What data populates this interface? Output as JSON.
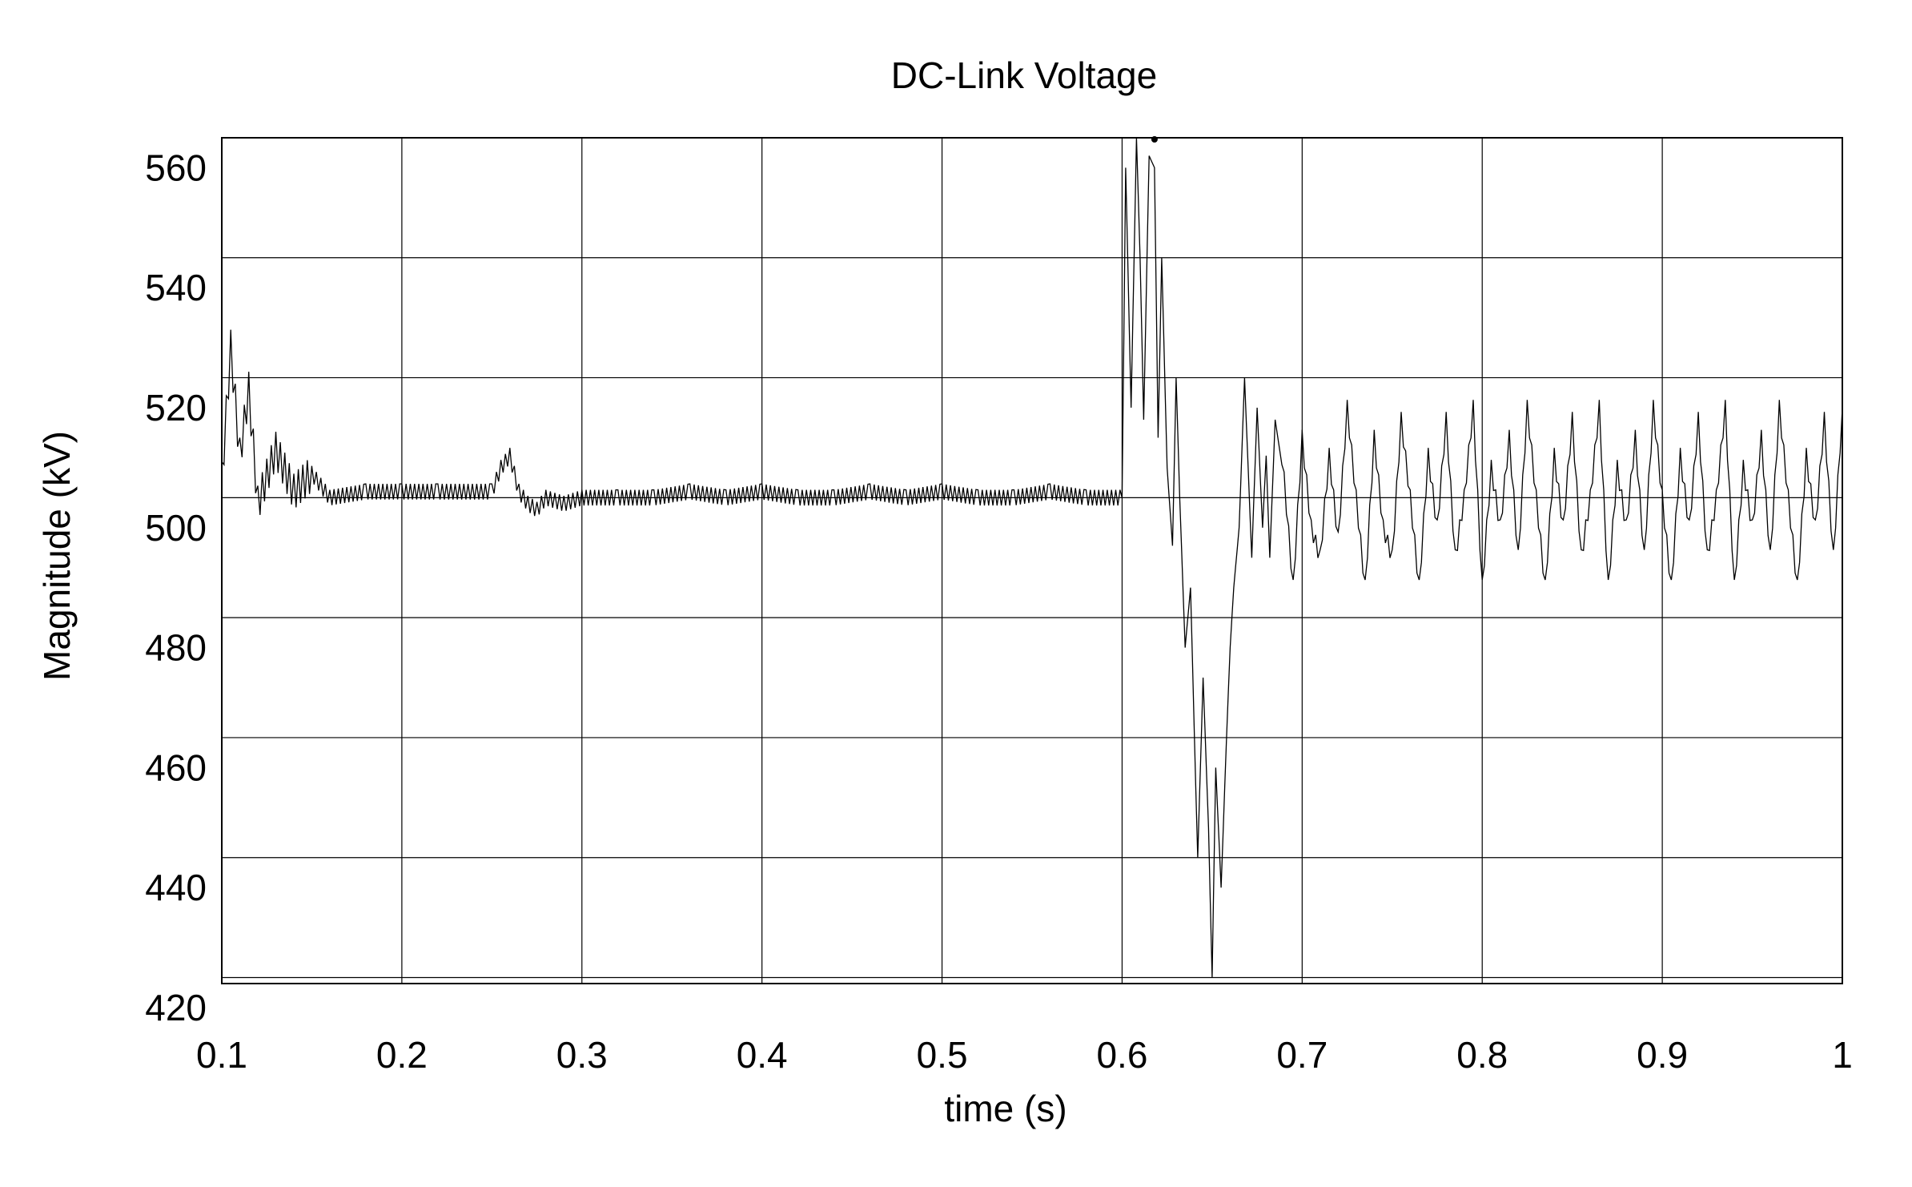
{
  "chart_data": {
    "type": "line",
    "title": "DC-Link Voltage",
    "xlabel": "time (s)",
    "ylabel": "Magnitude (kV)",
    "xlim": [
      0.1,
      1.0
    ],
    "ylim": [
      420,
      560
    ],
    "xticks": [
      "0.1",
      "0.2",
      "0.3",
      "0.4",
      "0.5",
      "0.6",
      "0.7",
      "0.8",
      "0.9",
      "1"
    ],
    "yticks": [
      "420",
      "440",
      "460",
      "480",
      "500",
      "520",
      "540",
      "560"
    ],
    "grid": true,
    "line_color": "#000000",
    "series": [
      {
        "x": [
          0.1,
          0.105,
          0.11,
          0.115,
          0.12,
          0.13,
          0.14,
          0.15,
          0.16,
          0.18,
          0.2,
          0.22,
          0.25,
          0.255,
          0.26,
          0.265,
          0.27,
          0.275,
          0.28,
          0.29,
          0.3,
          0.32,
          0.34,
          0.36,
          0.38,
          0.4,
          0.42,
          0.44,
          0.46,
          0.48,
          0.5,
          0.52,
          0.54,
          0.56,
          0.58,
          0.6,
          0.602,
          0.605,
          0.608,
          0.61,
          0.612,
          0.615,
          0.618,
          0.62,
          0.622,
          0.625,
          0.628,
          0.63,
          0.632,
          0.635,
          0.638,
          0.64,
          0.642,
          0.645,
          0.648,
          0.65,
          0.652,
          0.655,
          0.658,
          0.66,
          0.662,
          0.665,
          0.668,
          0.67,
          0.672,
          0.675,
          0.678,
          0.68,
          0.682,
          0.685,
          0.69,
          0.695,
          0.7,
          0.705,
          0.71,
          0.715,
          0.72,
          0.725,
          0.73,
          0.735,
          0.74,
          0.745,
          0.75,
          0.755,
          0.76,
          0.765,
          0.77,
          0.775,
          0.78,
          0.785,
          0.79,
          0.795,
          0.8,
          0.805,
          0.81,
          0.815,
          0.82,
          0.825,
          0.83,
          0.835,
          0.84,
          0.845,
          0.85,
          0.855,
          0.86,
          0.865,
          0.87,
          0.875,
          0.88,
          0.885,
          0.89,
          0.895,
          0.9,
          0.905,
          0.91,
          0.915,
          0.92,
          0.925,
          0.93,
          0.935,
          0.94,
          0.945,
          0.95,
          0.955,
          0.96,
          0.965,
          0.97,
          0.975,
          0.98,
          0.985,
          0.99,
          0.995,
          1.0
        ],
        "y": [
          508,
          530,
          512,
          523,
          504,
          513,
          506,
          509,
          505,
          506,
          506,
          506,
          506,
          510,
          512,
          506,
          504,
          503,
          505,
          504,
          505,
          505,
          505,
          506,
          505,
          506,
          505,
          505,
          506,
          505,
          506,
          505,
          505,
          506,
          505,
          505,
          560,
          520,
          565,
          545,
          518,
          562,
          560,
          515,
          545,
          510,
          497,
          525,
          505,
          480,
          490,
          467,
          445,
          475,
          450,
          425,
          460,
          440,
          465,
          480,
          490,
          500,
          525,
          510,
          495,
          520,
          500,
          512,
          495,
          518,
          508,
          490,
          515,
          500,
          495,
          512,
          498,
          520,
          505,
          490,
          515,
          500,
          495,
          518,
          505,
          490,
          512,
          500,
          518,
          495,
          505,
          520,
          490,
          510,
          500,
          515,
          495,
          520,
          505,
          490,
          512,
          500,
          518,
          495,
          505,
          520,
          490,
          510,
          500,
          515,
          495,
          520,
          505,
          490,
          512,
          500,
          518,
          495,
          505,
          520,
          490,
          510,
          500,
          515,
          495,
          520,
          505,
          490,
          512,
          500,
          518,
          495,
          520
        ]
      }
    ]
  }
}
